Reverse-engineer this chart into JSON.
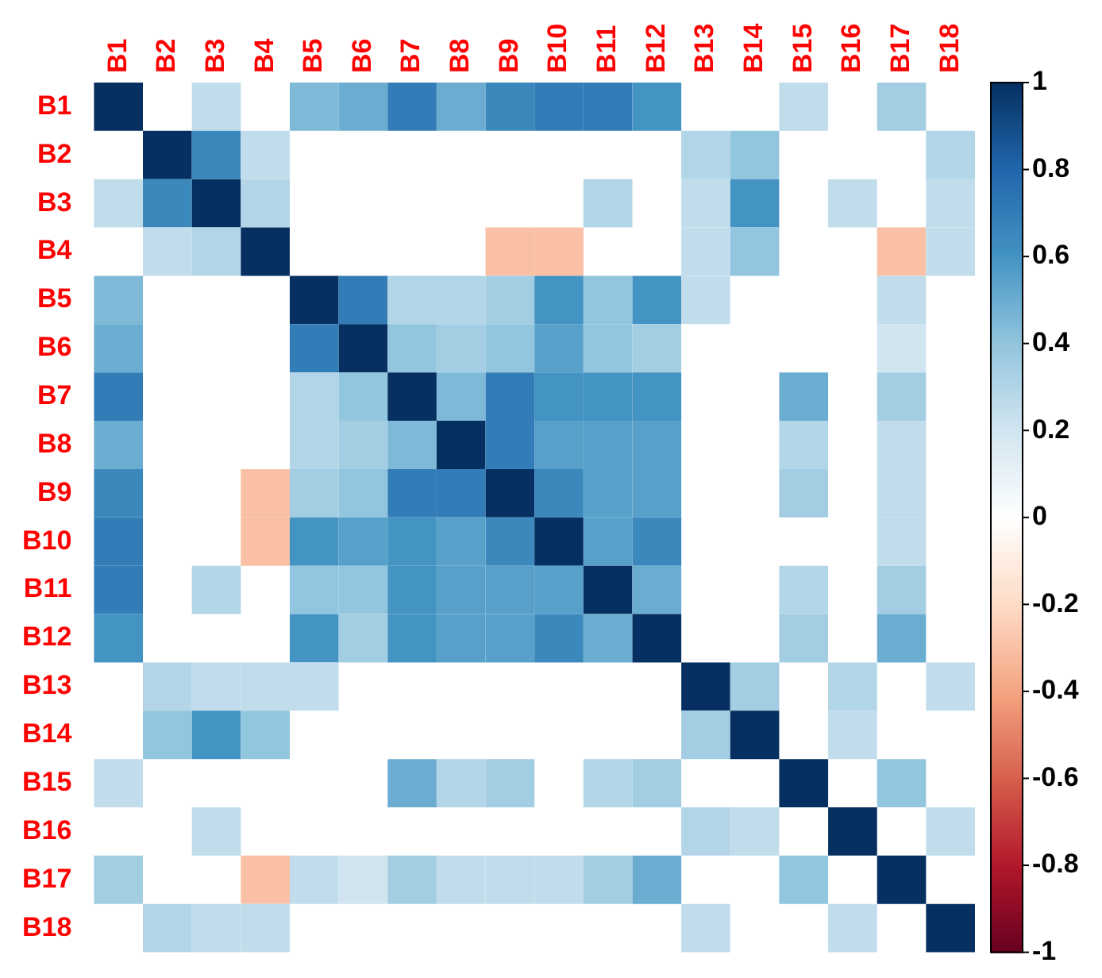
{
  "chart_data": {
    "type": "heatmap",
    "categories": [
      "B1",
      "B2",
      "B3",
      "B4",
      "B5",
      "B6",
      "B7",
      "B8",
      "B9",
      "B10",
      "B11",
      "B12",
      "B13",
      "B14",
      "B15",
      "B16",
      "B17",
      "B18"
    ],
    "y_categories": [
      "B1",
      "B2",
      "B3",
      "B4",
      "B5",
      "B6",
      "B7",
      "B8",
      "B9",
      "B10",
      "B11",
      "B12",
      "B13",
      "B14",
      "B15",
      "B16",
      "B17",
      "B18"
    ],
    "cells": [
      [
        1,
        null,
        0.25,
        null,
        0.45,
        0.5,
        0.7,
        0.5,
        0.65,
        0.7,
        0.7,
        0.6,
        null,
        null,
        0.25,
        null,
        0.35,
        null
      ],
      [
        null,
        1,
        0.65,
        0.25,
        null,
        null,
        null,
        null,
        null,
        null,
        null,
        null,
        0.3,
        0.4,
        null,
        null,
        null,
        0.3
      ],
      [
        0.25,
        0.65,
        1,
        0.3,
        null,
        null,
        null,
        null,
        null,
        null,
        0.3,
        null,
        0.25,
        0.6,
        null,
        0.25,
        null,
        0.25
      ],
      [
        null,
        0.25,
        0.3,
        1,
        null,
        null,
        null,
        null,
        -0.3,
        -0.3,
        null,
        null,
        0.25,
        0.4,
        null,
        null,
        -0.3,
        0.25
      ],
      [
        0.45,
        null,
        null,
        null,
        1,
        0.7,
        0.3,
        0.3,
        0.35,
        0.6,
        0.4,
        0.6,
        0.25,
        null,
        null,
        null,
        0.25,
        null
      ],
      [
        0.5,
        null,
        null,
        null,
        0.7,
        1,
        0.4,
        0.35,
        0.4,
        0.55,
        0.4,
        0.35,
        null,
        null,
        null,
        null,
        0.2,
        null
      ],
      [
        0.7,
        null,
        null,
        null,
        0.3,
        0.4,
        1,
        0.45,
        0.7,
        0.6,
        0.6,
        0.6,
        null,
        null,
        0.5,
        null,
        0.35,
        null
      ],
      [
        0.5,
        null,
        null,
        null,
        0.3,
        0.35,
        0.45,
        1,
        0.7,
        0.55,
        0.55,
        0.55,
        null,
        null,
        0.3,
        null,
        0.25,
        null
      ],
      [
        0.65,
        null,
        null,
        -0.3,
        0.35,
        0.4,
        0.7,
        0.7,
        1,
        0.65,
        0.55,
        0.55,
        null,
        null,
        0.35,
        null,
        0.25,
        null
      ],
      [
        0.7,
        null,
        null,
        -0.3,
        0.6,
        0.55,
        0.6,
        0.55,
        0.65,
        1,
        0.55,
        0.65,
        null,
        null,
        null,
        null,
        0.25,
        null
      ],
      [
        0.7,
        null,
        0.3,
        null,
        0.4,
        0.4,
        0.6,
        0.55,
        0.55,
        0.55,
        1,
        0.5,
        null,
        null,
        0.3,
        null,
        0.35,
        null
      ],
      [
        0.6,
        null,
        null,
        null,
        0.6,
        0.35,
        0.6,
        0.55,
        0.55,
        0.65,
        0.5,
        1,
        null,
        null,
        0.35,
        null,
        0.5,
        null
      ],
      [
        null,
        0.3,
        0.25,
        0.25,
        0.25,
        null,
        null,
        null,
        null,
        null,
        null,
        null,
        1,
        0.35,
        null,
        0.3,
        null,
        0.25
      ],
      [
        null,
        0.4,
        0.6,
        0.4,
        null,
        null,
        null,
        null,
        null,
        null,
        null,
        null,
        0.35,
        1,
        null,
        0.25,
        null,
        null
      ],
      [
        0.25,
        null,
        null,
        null,
        null,
        null,
        0.5,
        0.3,
        0.35,
        null,
        0.3,
        0.35,
        null,
        null,
        1,
        null,
        0.4,
        null
      ],
      [
        null,
        null,
        0.25,
        null,
        null,
        null,
        null,
        null,
        null,
        null,
        null,
        null,
        0.3,
        0.25,
        null,
        1,
        null,
        0.25
      ],
      [
        0.35,
        null,
        null,
        -0.3,
        0.25,
        0.2,
        0.35,
        0.25,
        0.25,
        0.25,
        0.35,
        0.5,
        null,
        null,
        0.4,
        null,
        1,
        null
      ],
      [
        null,
        0.3,
        0.25,
        0.25,
        null,
        null,
        null,
        null,
        null,
        null,
        null,
        null,
        0.25,
        null,
        null,
        0.25,
        null,
        1
      ]
    ],
    "clim": [
      -1,
      1
    ],
    "cticks": [
      {
        "value": 1,
        "label": "1"
      },
      {
        "value": 0.8,
        "label": "0.8"
      },
      {
        "value": 0.6,
        "label": "0.6"
      },
      {
        "value": 0.4,
        "label": "0.4"
      },
      {
        "value": 0.2,
        "label": "0.2"
      },
      {
        "value": 0,
        "label": "0"
      },
      {
        "value": -0.2,
        "label": "-0.2"
      },
      {
        "value": -0.4,
        "label": "-0.4"
      },
      {
        "value": -0.6,
        "label": "-0.6"
      },
      {
        "value": -0.8,
        "label": "-0.8"
      },
      {
        "value": -1,
        "label": "-1"
      }
    ]
  }
}
